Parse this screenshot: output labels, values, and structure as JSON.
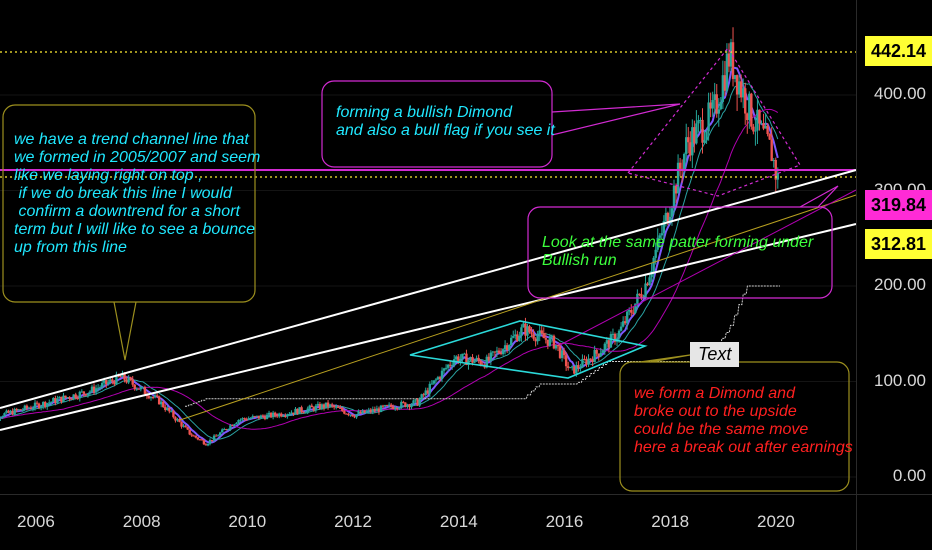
{
  "chart_data": {
    "type": "candlestick",
    "x_range": [
      2005.0,
      2021.6
    ],
    "y_range": [
      -15,
      470
    ],
    "x_ticks": [
      "2006",
      "2008",
      "2010",
      "2012",
      "2014",
      "2016",
      "2018",
      "2020"
    ],
    "y_ticks": [
      "400.00",
      "300.00",
      "200.00",
      "100.00",
      "0.00"
    ],
    "price_labels": [
      {
        "value": "442.14",
        "color": "#ffff33"
      },
      {
        "value": "319.84",
        "color": "#ff2bd6"
      },
      {
        "value": "312.81",
        "color": "#ffff33"
      }
    ],
    "up_color": "#26a69a",
    "down_color": "#ef5350",
    "approx_close_series": [
      {
        "t": 2005.0,
        "v": 60
      },
      {
        "t": 2006.0,
        "v": 75
      },
      {
        "t": 2007.0,
        "v": 90
      },
      {
        "t": 2007.6,
        "v": 105
      },
      {
        "t": 2008.3,
        "v": 80
      },
      {
        "t": 2008.9,
        "v": 45
      },
      {
        "t": 2009.2,
        "v": 35
      },
      {
        "t": 2009.8,
        "v": 60
      },
      {
        "t": 2010.5,
        "v": 65
      },
      {
        "t": 2011.5,
        "v": 75
      },
      {
        "t": 2012.0,
        "v": 65
      },
      {
        "t": 2012.8,
        "v": 75
      },
      {
        "t": 2013.2,
        "v": 78
      },
      {
        "t": 2013.9,
        "v": 125
      },
      {
        "t": 2014.5,
        "v": 120
      },
      {
        "t": 2015.2,
        "v": 155
      },
      {
        "t": 2015.8,
        "v": 140
      },
      {
        "t": 2016.1,
        "v": 110
      },
      {
        "t": 2016.6,
        "v": 130
      },
      {
        "t": 2017.0,
        "v": 150
      },
      {
        "t": 2017.5,
        "v": 200
      },
      {
        "t": 2017.9,
        "v": 270
      },
      {
        "t": 2018.3,
        "v": 350
      },
      {
        "t": 2018.8,
        "v": 380
      },
      {
        "t": 2019.1,
        "v": 442
      },
      {
        "t": 2019.5,
        "v": 380
      },
      {
        "t": 2019.9,
        "v": 340
      },
      {
        "t": 2020.0,
        "v": 312
      }
    ],
    "annotations": [
      "we have a trend channel line that\nwe formed in 2005/2007 and seem\nlike we laying right on top ,\n if we do break this line I would\n confirm a downtrend for a short\nterm but I will like to see a bounce\nup from this line",
      "forming a bullish Dimond\nand also a bull flag if you see it",
      "Look at the same patter forming under\nBullish run",
      "we form a Dimond and\nbroke out to the upside\ncould be the same move\nhere a break out after earnings",
      "Text"
    ]
  },
  "colors": {
    "annotation_cyan": "#20e8ff",
    "annotation_green": "#3dff3d",
    "annotation_red": "#ff2020",
    "diamond_cyan": "#2bd9d9",
    "magenta": "#d22bd2",
    "yellow_dotted": "#ffee33"
  }
}
